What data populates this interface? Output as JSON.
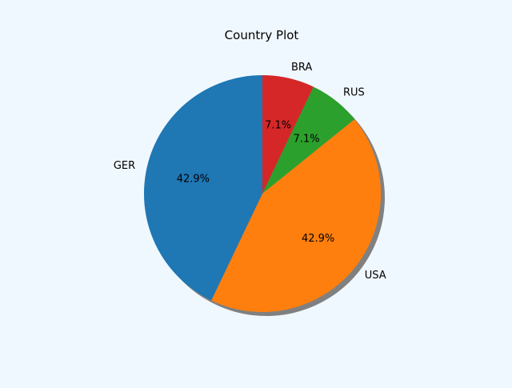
{
  "chart_data": {
    "type": "pie",
    "title": "Country Plot",
    "categories": [
      "BRA",
      "RUS",
      "USA",
      "GER"
    ],
    "values": [
      7.1,
      7.1,
      42.9,
      42.9
    ],
    "percent_labels": [
      "7.1%",
      "7.1%",
      "42.9%",
      "42.9%"
    ],
    "colors": [
      "#d62728",
      "#2ca02c",
      "#ff7f0e",
      "#1f77b4"
    ],
    "shadow": true,
    "start_angle_deg": 90,
    "direction": "clockwise"
  },
  "colors": {
    "background": "#f0f8ff",
    "shadow": "#808080"
  }
}
